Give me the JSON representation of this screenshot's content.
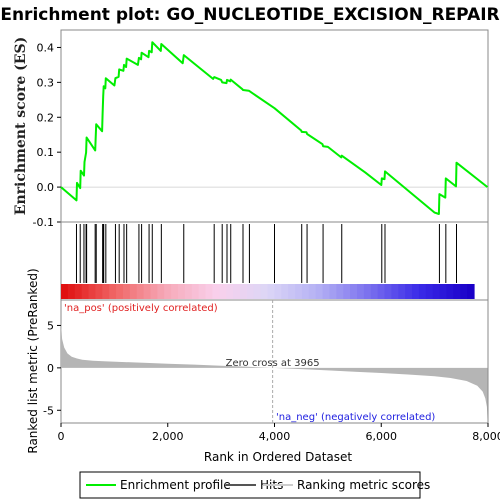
{
  "chart_data": {
    "type": "line",
    "title": "Enrichment plot: GO_NUCLEOTIDE_EXCISION_REPAIR",
    "xlabel": "Rank in Ordered Dataset",
    "es_panel": {
      "ylabel": "Enrichment score (ES)",
      "ylim": [
        -0.1,
        0.45
      ],
      "yticks": [
        "-0.1",
        "0.0",
        "0.1",
        "0.2",
        "0.3",
        "0.4"
      ],
      "ytick_values": [
        -0.1,
        0.0,
        0.1,
        0.2,
        0.3,
        0.4
      ],
      "x": [
        0,
        290,
        300,
        360,
        370,
        430,
        440,
        470,
        480,
        640,
        660,
        770,
        780,
        790,
        800,
        830,
        840,
        1000,
        1020,
        1080,
        1090,
        1170,
        1180,
        1220,
        1230,
        1440,
        1460,
        1500,
        1510,
        1640,
        1650,
        1700,
        1710,
        1870,
        1880,
        2280,
        2300,
        2850,
        2870,
        3000,
        3020,
        3100,
        3110,
        3170,
        3180,
        3400,
        3410,
        3520,
        3530,
        4000,
        4500,
        4510,
        4600,
        4610,
        4900,
        4910,
        5000,
        5250,
        5260,
        5700,
        6000,
        6010,
        6060,
        6070,
        7000,
        7080,
        7090,
        7200,
        7210,
        7400,
        7410,
        7990
      ],
      "y": [
        0.0,
        -0.038,
        0.012,
        -0.003,
        0.047,
        0.033,
        0.072,
        0.099,
        0.142,
        0.105,
        0.18,
        0.16,
        0.21,
        0.26,
        0.289,
        0.283,
        0.312,
        0.291,
        0.312,
        0.316,
        0.337,
        0.333,
        0.35,
        0.344,
        0.368,
        0.35,
        0.37,
        0.366,
        0.385,
        0.372,
        0.39,
        0.386,
        0.415,
        0.39,
        0.41,
        0.355,
        0.378,
        0.31,
        0.315,
        0.307,
        0.3,
        0.298,
        0.307,
        0.303,
        0.308,
        0.28,
        0.278,
        0.276,
        0.275,
        0.226,
        0.162,
        0.158,
        0.157,
        0.152,
        0.123,
        0.117,
        0.115,
        0.085,
        0.09,
        0.042,
        0.006,
        0.025,
        0.023,
        0.045,
        -0.073,
        -0.077,
        -0.02,
        -0.03,
        0.025,
        0.002,
        0.07,
        0.0
      ],
      "xlim": [
        0,
        8000
      ]
    },
    "hits": [
      290,
      360,
      430,
      470,
      480,
      640,
      660,
      780,
      790,
      800,
      840,
      1020,
      1090,
      1180,
      1230,
      1460,
      1510,
      1650,
      1710,
      1880,
      2300,
      2870,
      3020,
      3110,
      3180,
      3410,
      3530,
      4000,
      4510,
      4610,
      4910,
      5260,
      6010,
      6070,
      7090,
      7210,
      7410
    ],
    "rank_panel": {
      "ylabel": "Ranked list metric (PreRanked)",
      "ylim": [
        -6.5,
        8
      ],
      "yticks": [
        "-5",
        "0",
        "5"
      ],
      "ytick_values": [
        -5,
        0,
        5
      ],
      "xticks": [
        "0",
        "2,000",
        "4,000",
        "6,000",
        "8,000"
      ],
      "xtick_values": [
        0,
        2000,
        4000,
        6000,
        8000
      ],
      "zero_cross": 3965,
      "zero_cross_label": "Zero cross at 3965",
      "pos_label": "'na_pos' (positively correlated)",
      "neg_label": "'na_neg' (negatively correlated)",
      "curve_x": [
        0,
        20,
        60,
        120,
        200,
        300,
        400,
        600,
        800,
        1200,
        1600,
        2000,
        2500,
        3000,
        3500,
        3965,
        4500,
        5000,
        5500,
        6000,
        6500,
        7000,
        7300,
        7600,
        7800,
        7900,
        7950,
        7980,
        7990
      ],
      "curve_y": [
        5.4,
        3.4,
        2.4,
        1.7,
        1.3,
        1.1,
        0.95,
        0.85,
        0.78,
        0.68,
        0.58,
        0.48,
        0.38,
        0.25,
        0.12,
        0.0,
        -0.15,
        -0.3,
        -0.45,
        -0.6,
        -0.78,
        -1.0,
        -1.2,
        -1.55,
        -2.1,
        -2.8,
        -3.6,
        -4.6,
        -6.1
      ]
    },
    "colors": {
      "es_line": "#00ee00",
      "hits": "#000000",
      "ranking_fill": "#b5b5b5",
      "pos_text": "#e02020",
      "neg_text": "#2020e0",
      "zero_line": "#aaaaaa",
      "bar_gradient": [
        "#e01010",
        "#f06666",
        "#f6a9b8",
        "#f9d0ec",
        "#dcd6f6",
        "#b4b0f4",
        "#7a70ee",
        "#3a2ae8",
        "#1a00c8"
      ]
    },
    "legend": {
      "items": [
        {
          "label": "Enrichment profile",
          "color": "#00ee00",
          "style": "line"
        },
        {
          "label": "Hits",
          "color": "#555555",
          "style": "line"
        },
        {
          "label": "Ranking metric scores",
          "color": "#cccccc",
          "style": "line"
        }
      ]
    }
  }
}
